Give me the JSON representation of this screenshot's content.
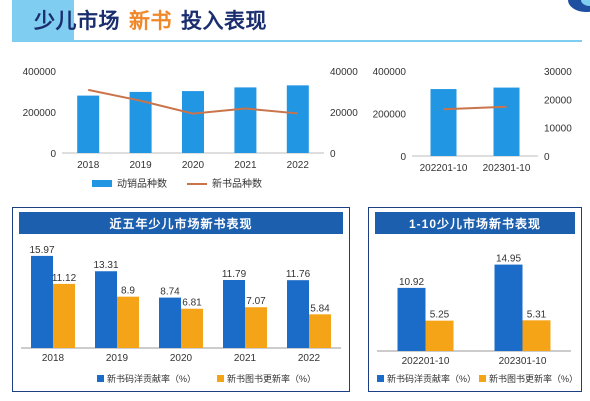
{
  "page": {
    "title_part1": "少儿市场",
    "title_part2": "新书",
    "title_part3": "投入表现"
  },
  "colors": {
    "blue": "#2196e3",
    "orange": "#f5a418",
    "line": "#c9744a",
    "deep_blue": "#1a6cc8",
    "panel_head": "#1b5fae",
    "accent": "#7fcdf0"
  },
  "chart_data": [
    {
      "type": "bar",
      "categories": [
        "2018",
        "2019",
        "2020",
        "2021",
        "2022"
      ],
      "series": [
        {
          "name": "动销品种数",
          "type": "bar",
          "axis": "left",
          "values": [
            280000,
            298000,
            302000,
            320000,
            330000
          ]
        },
        {
          "name": "新书品种数",
          "type": "line",
          "axis": "right",
          "values": [
            30800,
            25500,
            19200,
            21700,
            19300
          ]
        }
      ],
      "y_left": {
        "range": [
          0,
          400000
        ],
        "ticks": [
          "0",
          "200000",
          "400000"
        ]
      },
      "y_right": {
        "range": [
          0,
          40000
        ],
        "ticks": [
          "0",
          "20000",
          "40000"
        ]
      },
      "legend": "bottom"
    },
    {
      "type": "bar",
      "categories": [
        "202201-10",
        "202301-10"
      ],
      "series": [
        {
          "type": "bar",
          "axis": "left",
          "values": [
            315000,
            322000
          ]
        },
        {
          "type": "line",
          "axis": "right",
          "values": [
            16500,
            17400
          ]
        }
      ],
      "y_left": {
        "range": [
          0,
          400000
        ],
        "ticks": [
          "0",
          "200000",
          "400000"
        ]
      },
      "y_right": {
        "range": [
          0,
          30000
        ],
        "ticks": [
          "0",
          "10000",
          "20000",
          "30000"
        ]
      }
    },
    {
      "type": "bar",
      "title": "近五年少儿市场新书表现",
      "categories": [
        "2018",
        "2019",
        "2020",
        "2021",
        "2022"
      ],
      "series": [
        {
          "name": "新书码洋贡献率（%）",
          "values": [
            15.97,
            13.31,
            8.74,
            11.79,
            11.76
          ],
          "labels": [
            "15.97",
            "13.31",
            "8.74",
            "11.79",
            "11.76"
          ]
        },
        {
          "name": "新书图书更新率（%）",
          "values": [
            11.12,
            8.9,
            6.81,
            7.07,
            5.84
          ],
          "labels": [
            "11.12",
            "8.9",
            "6.81",
            "7.07",
            "5.84"
          ]
        }
      ],
      "legend": "bottom"
    },
    {
      "type": "bar",
      "title": "1-10少儿市场新书表现",
      "categories": [
        "202201-10",
        "202301-10"
      ],
      "series": [
        {
          "name": "新书码洋贡献率（%）",
          "values": [
            10.92,
            14.95
          ],
          "labels": [
            "10.92",
            "14.95"
          ]
        },
        {
          "name": "新书图书更新率（%）",
          "values": [
            5.25,
            5.31
          ],
          "labels": [
            "5.25",
            "5.31"
          ]
        }
      ],
      "legend": "bottom"
    }
  ]
}
